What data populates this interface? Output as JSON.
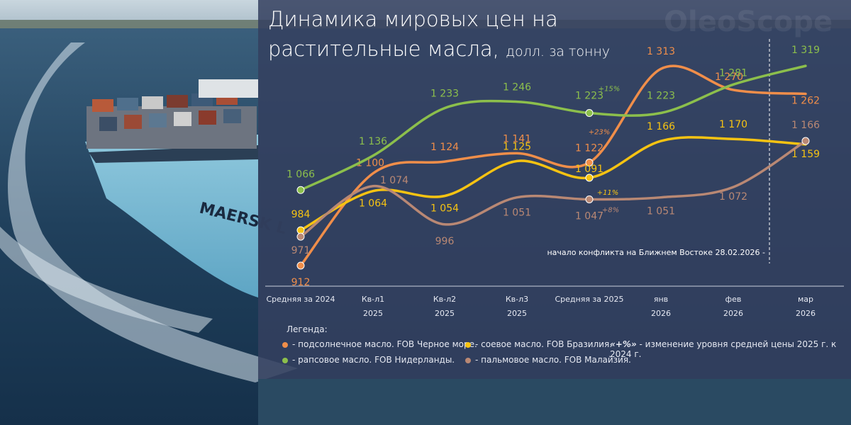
{
  "header": {
    "title": "Динамика мировых цен на растительные масла,",
    "unit": "долл. за тонну",
    "brand": "OleoScope"
  },
  "colors": {
    "sunflower": "#f08e4a",
    "rapeseed": "#8cbf4c",
    "soybean": "#f6c312",
    "palm": "#b98874",
    "panel": "#344060"
  },
  "chart_data": {
    "type": "line",
    "categories": [
      [
        "Средняя за 2024",
        ""
      ],
      [
        "Кв-л1",
        "2025"
      ],
      [
        "Кв-л2",
        "2025"
      ],
      [
        "Кв-л3",
        "2025"
      ],
      [
        "Средняя за 2025",
        ""
      ],
      [
        "янв",
        "2026"
      ],
      [
        "фев",
        "2026"
      ],
      [
        "мар",
        "2026"
      ]
    ],
    "series": [
      {
        "key": "sunflower",
        "name": "подсолнечное масло. FOB Черное море.",
        "values": [
          912,
          1100,
          1124,
          1141,
          1122,
          1313,
          1270,
          1262
        ],
        "labels": [
          "912",
          "1 100",
          "1 124",
          "1 141",
          "1 122",
          "1 313",
          "1 270",
          "1 262"
        ],
        "change": "+23%"
      },
      {
        "key": "rapeseed",
        "name": "рапсовое масло. FOB Нидерланды.",
        "values": [
          1066,
          1136,
          1233,
          1246,
          1223,
          1223,
          1281,
          1319
        ],
        "labels": [
          "1 066",
          "1 136",
          "1 233",
          "1 246",
          "1 223",
          "1 223",
          "1 281",
          "1 319"
        ],
        "change": "+15%"
      },
      {
        "key": "soybean",
        "name": "соевое масло. FOB Бразилия.",
        "values": [
          984,
          1064,
          1054,
          1125,
          1091,
          1166,
          1170,
          1159
        ],
        "labels": [
          "984",
          "1 064",
          "1 054",
          "1 125",
          "1 091",
          "1 166",
          "1 170",
          "1 159"
        ],
        "change": "+11%"
      },
      {
        "key": "palm",
        "name": "пальмовое масло. FOB Малайзия.",
        "values": [
          971,
          1074,
          996,
          1051,
          1047,
          1051,
          1072,
          1166
        ],
        "labels": [
          "971",
          "1 074",
          "996",
          "1 051",
          "1 047",
          "1 051",
          "1 072",
          "1 166"
        ],
        "change": "+8%"
      }
    ],
    "annotation": "начало конфликта на Ближнем Востоке 28.02.2026 -",
    "annotation_after_category": 6
  },
  "legend": {
    "title": "Легенда:",
    "items": [
      {
        "key": "sunflower",
        "text": "- подсолнечное масло. FOB Черное море."
      },
      {
        "key": "soybean",
        "text": "- соевое масло. FOB Бразилия."
      },
      {
        "key": "rapeseed",
        "text": "- рапсовое масло. FOB Нидерланды."
      },
      {
        "key": "palm",
        "text": "- пальмовое масло. FOB Малайзия."
      }
    ],
    "note_symbol": "«+%»",
    "note_text": " - изменение уровня средней цены 2025 г. к 2024 г."
  }
}
